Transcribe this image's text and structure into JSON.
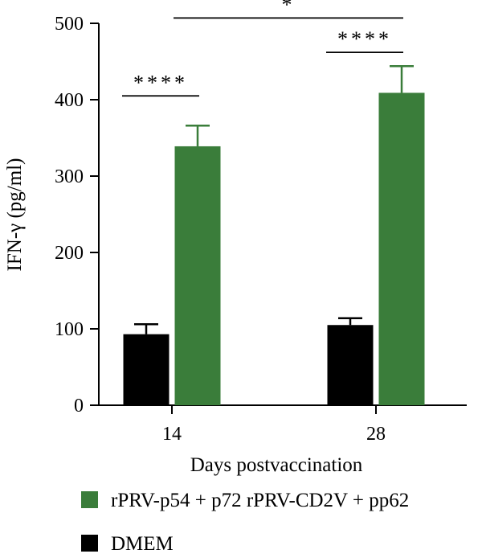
{
  "chart_data": {
    "type": "bar",
    "xlabel": "Days postvaccination",
    "ylabel": "IFN-γ (pg/ml)",
    "ylim": [
      0,
      500
    ],
    "yticks": [
      0,
      100,
      200,
      300,
      400,
      500
    ],
    "categories": [
      "14",
      "28"
    ],
    "series": [
      {
        "name": "DMEM",
        "color": "#000000",
        "values": [
          93,
          105
        ],
        "errors": [
          13,
          9
        ]
      },
      {
        "name": "rPRV-p54 + p72 rPRV-CD2V + pp62",
        "color": "#3a7d3a",
        "values": [
          339,
          409
        ],
        "errors": [
          27,
          35
        ]
      }
    ],
    "significance": [
      {
        "label": "****",
        "from": {
          "category": 0,
          "series": 0
        },
        "to": {
          "category": 0,
          "series": 1
        },
        "level": 405
      },
      {
        "label": "****",
        "from": {
          "category": 1,
          "series": 0
        },
        "to": {
          "category": 1,
          "series": 1
        },
        "level": 462
      },
      {
        "label": "*",
        "from": {
          "category": 0,
          "series": 1
        },
        "to": {
          "category": 1,
          "series": 1
        },
        "level": 507
      }
    ],
    "legend": {
      "position": "bottom",
      "order": [
        "rPRV-p54 + p72 rPRV-CD2V + pp62",
        "DMEM"
      ]
    },
    "grid": false
  }
}
